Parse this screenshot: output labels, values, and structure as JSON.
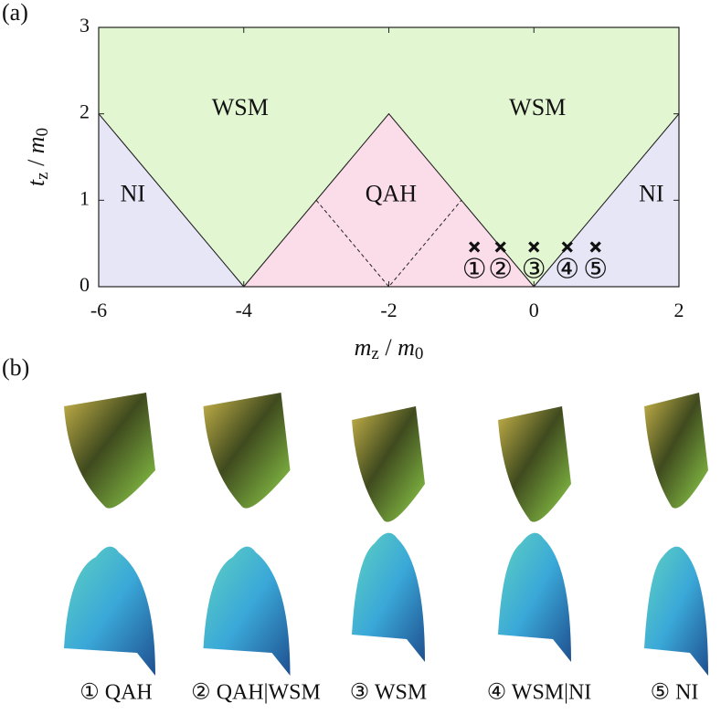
{
  "chart_data": {
    "type": "phase",
    "panel_label": "(a)",
    "xlabel": {
      "main": "m",
      "sub": "z",
      "sep": " / ",
      "main2": "m",
      "sub2": "0"
    },
    "ylabel": {
      "main": "t",
      "sub": "z",
      "sep": " / ",
      "main2": "m",
      "sub2": "0"
    },
    "xlim": [
      -6,
      2
    ],
    "ylim": [
      0,
      3
    ],
    "xticks": [
      -6,
      -4,
      -2,
      0,
      2
    ],
    "yticks": [
      0,
      1,
      2,
      3
    ],
    "regions": [
      {
        "name": "WSM",
        "color": "#e2f6d2",
        "text_color": "#3d6e1c",
        "points": [
          [
            -6,
            2
          ],
          [
            -6,
            3
          ],
          [
            2,
            3
          ],
          [
            2,
            2
          ],
          [
            0,
            0
          ],
          [
            -2,
            2
          ],
          [
            -4,
            0
          ]
        ]
      },
      {
        "name": "QAH",
        "color": "#fbdde9",
        "text_color": "#e0201e",
        "points": [
          [
            -4,
            0
          ],
          [
            -2,
            2
          ],
          [
            0,
            0
          ]
        ]
      },
      {
        "name": "NI",
        "color": "#e6e6f6",
        "text_color": "#111111",
        "points": [
          [
            -6,
            0
          ],
          [
            -6,
            2
          ],
          [
            -4,
            0
          ]
        ]
      },
      {
        "name": "NI",
        "color": "#e6e6f6",
        "text_color": "#1c1c6e",
        "points": [
          [
            0,
            0
          ],
          [
            2,
            2
          ],
          [
            2,
            0
          ]
        ]
      }
    ],
    "region_labels": [
      {
        "text": "WSM",
        "x": -4.05,
        "y": 2.05,
        "color": "#3d6e1c"
      },
      {
        "text": "WSM",
        "x": 0.05,
        "y": 2.05,
        "color": "#3d6e1c"
      },
      {
        "text": "QAH",
        "x": -1.97,
        "y": 1.05,
        "color": "#e0201e"
      },
      {
        "text": "NI",
        "x": -5.53,
        "y": 1.05,
        "color": "#111111"
      },
      {
        "text": "NI",
        "x": 1.62,
        "y": 1.05,
        "color": "#1c1c6e"
      }
    ],
    "dashed": [
      [
        -3,
        1
      ],
      [
        -2,
        0
      ],
      [
        -1,
        1
      ]
    ],
    "points": {
      "x": [
        -0.82,
        -0.46,
        0,
        0.46,
        0.85
      ],
      "values": [
        0.46,
        0.46,
        0.46,
        0.46,
        0.46
      ],
      "labels": [
        "①",
        "②",
        "③",
        "④",
        "⑤"
      ]
    }
  },
  "panel_b": {
    "panel_label": "(b)",
    "labels": [
      "① QAH",
      "② QAH|WSM",
      "③ WSM",
      "④ WSM|NI",
      "⑤ NI"
    ]
  }
}
